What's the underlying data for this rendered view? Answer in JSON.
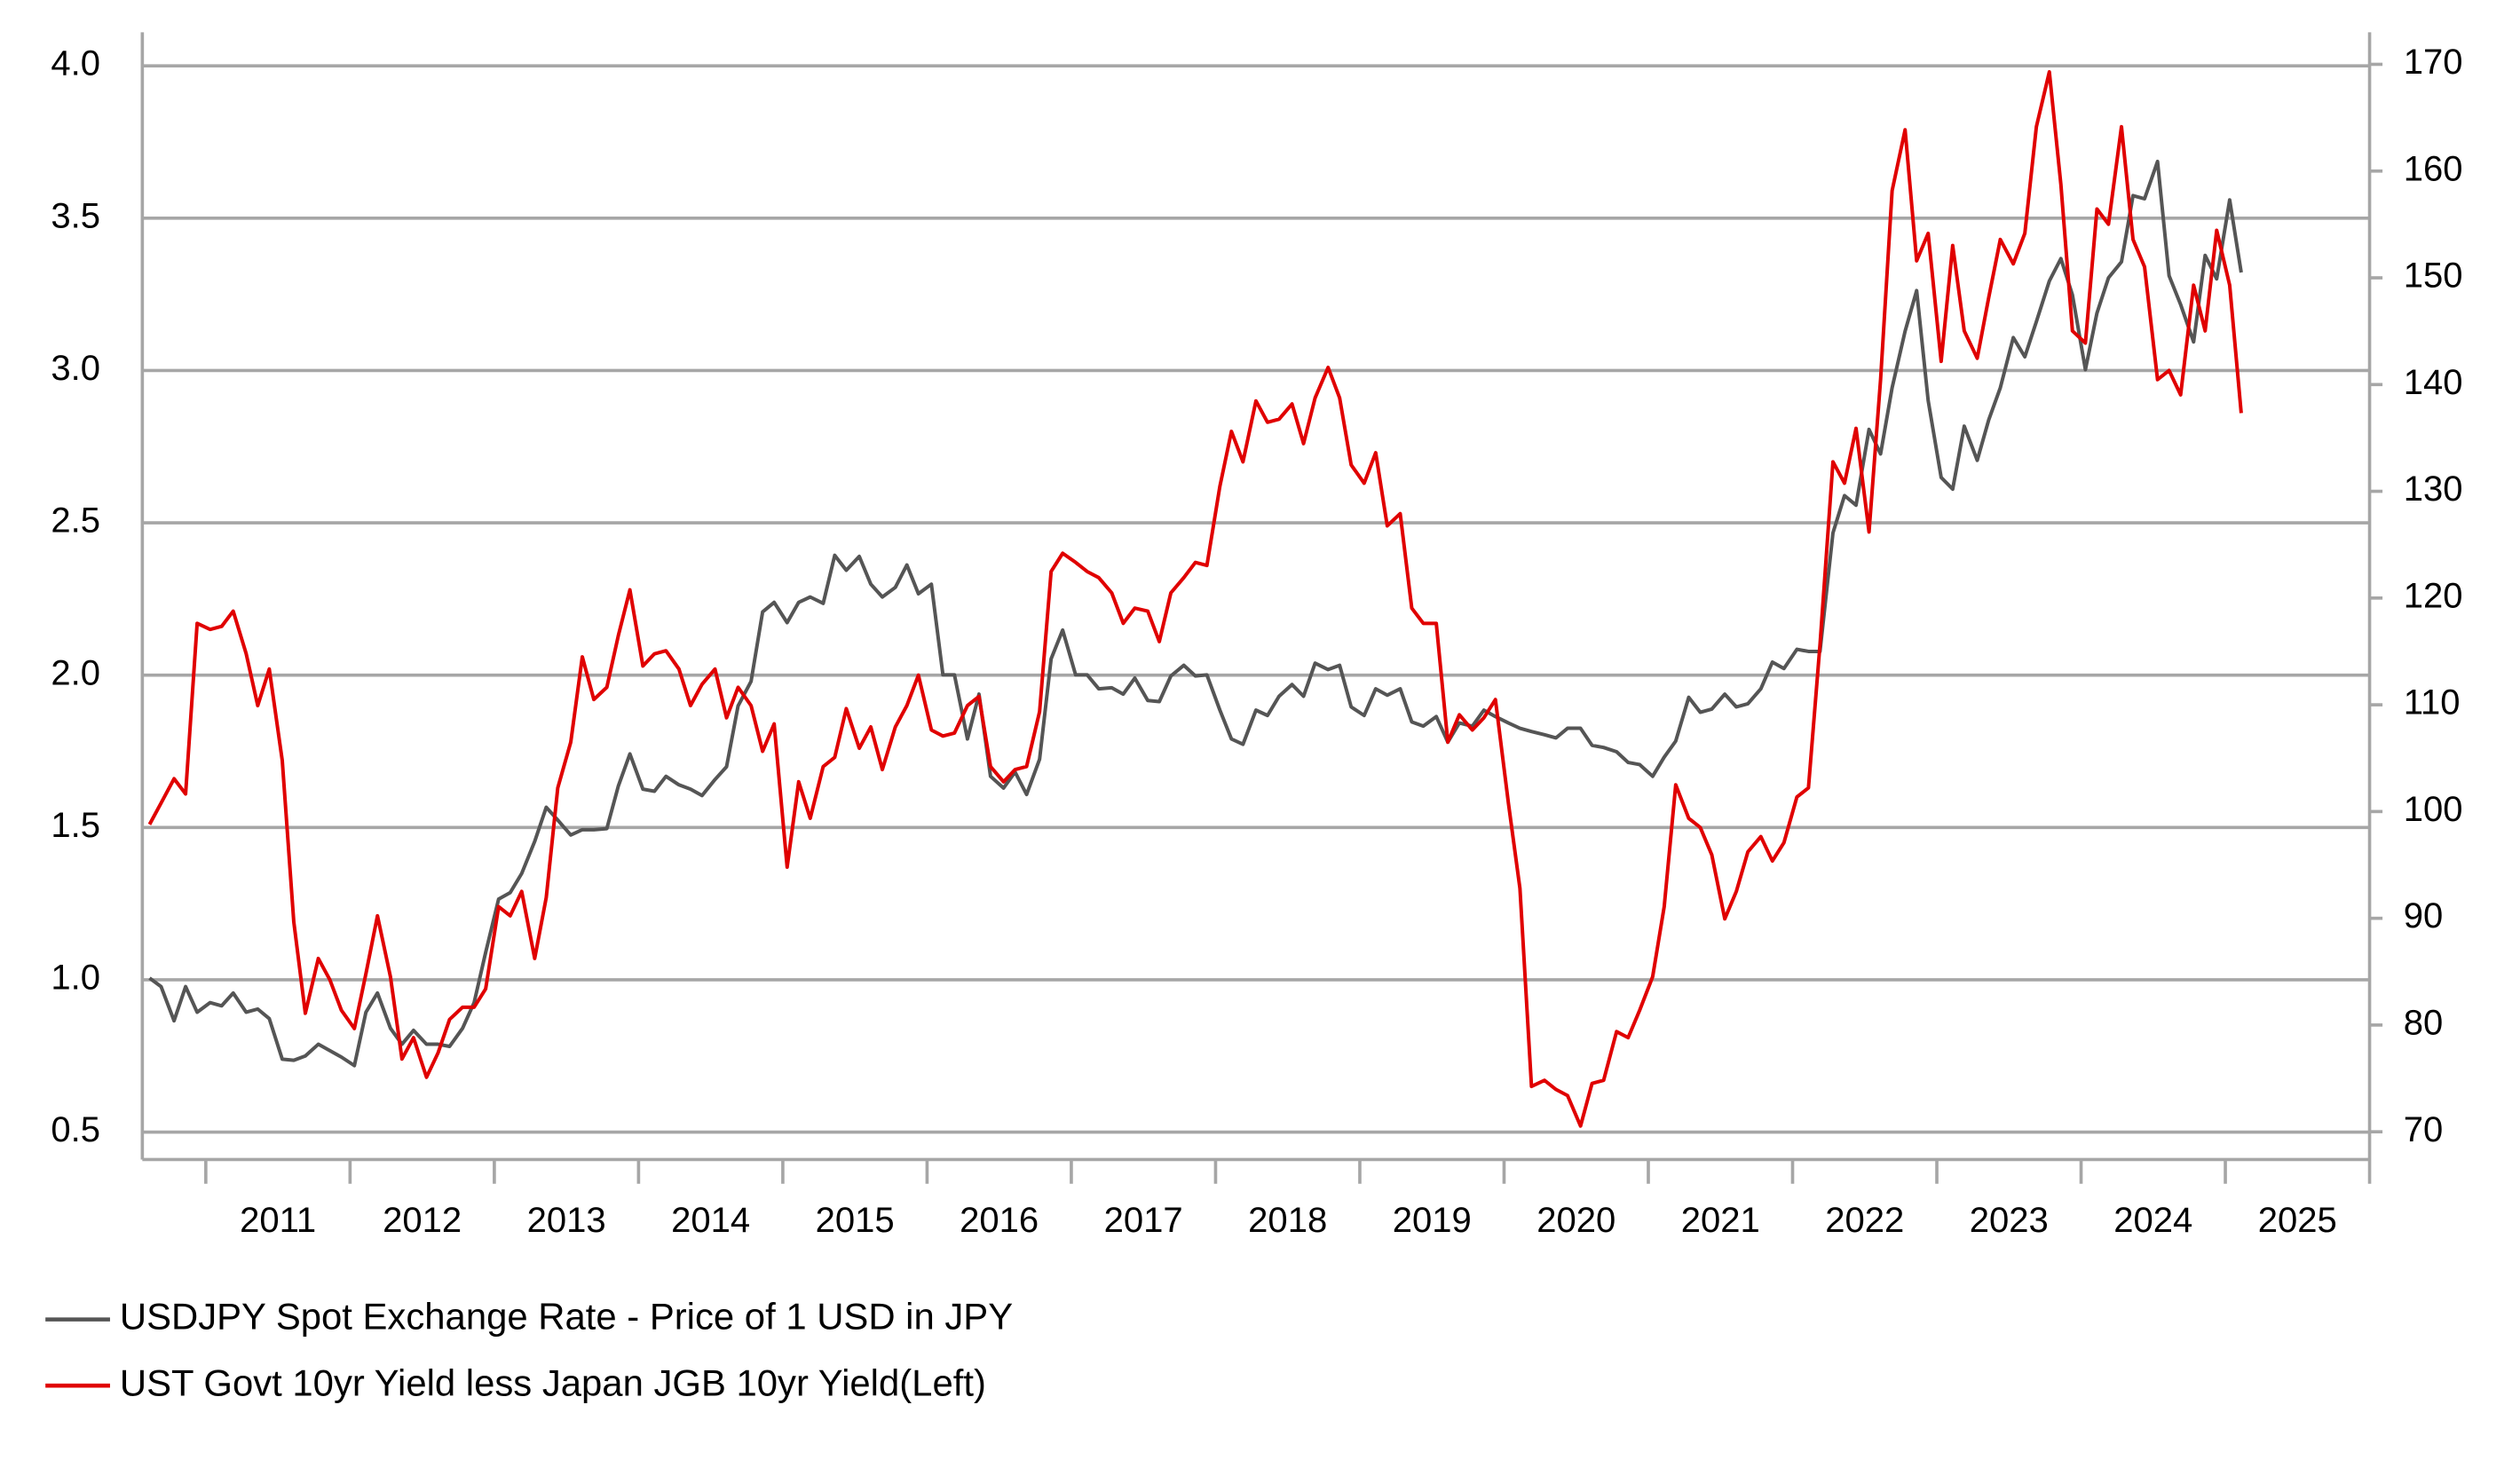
{
  "chart_data": {
    "type": "line",
    "xlim": [
      2010.56,
      2026.0
    ],
    "xticks": [
      2011,
      2012,
      2013,
      2014,
      2015,
      2016,
      2017,
      2018,
      2019,
      2020,
      2021,
      2022,
      2023,
      2024,
      2025,
      2026
    ],
    "xtick_labels": [
      "2011",
      "2012",
      "2013",
      "2014",
      "2015",
      "2016",
      "2017",
      "2018",
      "2019",
      "2020",
      "2021",
      "2022",
      "2023",
      "2024",
      "2025"
    ],
    "ylim": [
      0.41,
      4.11
    ],
    "yticks": [
      0.5,
      {
        "value": 1,
        "label": "1.0"
      },
      1.5,
      {
        "value": 2,
        "label": "2.0"
      },
      2.5,
      {
        "value": 3,
        "label": "3.0"
      },
      3.5,
      {
        "value": 4,
        "label": "4.0"
      }
    ],
    "y2lim": [
      67.4,
      173.0
    ],
    "y2ticks": [
      70,
      80,
      90,
      100,
      110,
      120,
      130,
      140,
      150,
      160,
      170
    ],
    "grid": true,
    "legend": "bottom-left",
    "x": [
      2010.61,
      2010.69,
      2010.78,
      2010.86,
      2010.94,
      2011.03,
      2011.11,
      2011.19,
      2011.28,
      2011.36,
      2011.44,
      2011.53,
      2011.61,
      2011.69,
      2011.78,
      2011.86,
      2011.94,
      2012.03,
      2012.11,
      2012.19,
      2012.28,
      2012.36,
      2012.44,
      2012.53,
      2012.61,
      2012.69,
      2012.78,
      2012.86,
      2012.94,
      2013.03,
      2013.11,
      2013.19,
      2013.28,
      2013.36,
      2013.44,
      2013.53,
      2013.61,
      2013.69,
      2013.78,
      2013.86,
      2013.94,
      2014.03,
      2014.11,
      2014.19,
      2014.28,
      2014.36,
      2014.44,
      2014.53,
      2014.61,
      2014.69,
      2014.78,
      2014.86,
      2014.94,
      2015.03,
      2015.11,
      2015.19,
      2015.28,
      2015.36,
      2015.44,
      2015.53,
      2015.61,
      2015.69,
      2015.78,
      2015.86,
      2015.94,
      2016.03,
      2016.11,
      2016.19,
      2016.28,
      2016.36,
      2016.44,
      2016.53,
      2016.61,
      2016.69,
      2016.78,
      2016.86,
      2016.94,
      2017.03,
      2017.11,
      2017.19,
      2017.28,
      2017.36,
      2017.44,
      2017.53,
      2017.61,
      2017.69,
      2017.78,
      2017.86,
      2017.94,
      2018.03,
      2018.11,
      2018.19,
      2018.28,
      2018.36,
      2018.44,
      2018.53,
      2018.61,
      2018.69,
      2018.78,
      2018.86,
      2018.94,
      2019.03,
      2019.11,
      2019.19,
      2019.28,
      2019.36,
      2019.44,
      2019.53,
      2019.61,
      2019.69,
      2019.78,
      2019.86,
      2019.94,
      2020.03,
      2020.11,
      2020.19,
      2020.28,
      2020.36,
      2020.44,
      2020.53,
      2020.61,
      2020.69,
      2020.78,
      2020.86,
      2020.94,
      2021.03,
      2021.11,
      2021.19,
      2021.28,
      2021.36,
      2021.44,
      2021.53,
      2021.61,
      2021.69,
      2021.78,
      2021.86,
      2021.94,
      2022.03,
      2022.11,
      2022.19,
      2022.28,
      2022.36,
      2022.44,
      2022.53,
      2022.61,
      2022.69,
      2022.78,
      2022.86,
      2022.94,
      2023.03,
      2023.11,
      2023.19,
      2023.28,
      2023.36,
      2023.44,
      2023.53,
      2023.61,
      2023.69,
      2023.78,
      2023.86,
      2023.94,
      2024.03,
      2024.11,
      2024.19,
      2024.28,
      2024.36,
      2024.44,
      2024.53,
      2024.61,
      2024.69,
      2024.78,
      2024.86,
      2024.94,
      2025.03,
      2025.11
    ],
    "series": [
      {
        "name": "USDJPY Spot Exchange Rate - Price of 1 USD in JPY",
        "color": "#555555",
        "axis": "y2",
        "values": [
          84.4,
          83.6,
          80.4,
          83.6,
          81.2,
          82.1,
          81.8,
          83.0,
          81.2,
          81.5,
          80.6,
          76.8,
          76.7,
          77.1,
          78.2,
          77.6,
          77.0,
          76.2,
          81.2,
          83.0,
          79.7,
          78.2,
          79.5,
          78.2,
          78.2,
          78.0,
          79.7,
          82.1,
          86.8,
          91.8,
          92.4,
          94.2,
          97.2,
          100.4,
          99.2,
          97.8,
          98.3,
          98.3,
          98.4,
          102.4,
          105.4,
          102.1,
          101.9,
          103.3,
          102.5,
          102.1,
          101.5,
          103.0,
          104.2,
          109.9,
          112.2,
          118.7,
          119.6,
          117.7,
          119.6,
          120.1,
          119.5,
          124.0,
          122.6,
          123.9,
          121.3,
          120.1,
          121.0,
          123.1,
          120.4,
          121.3,
          112.8,
          112.8,
          106.8,
          111.0,
          103.3,
          102.2,
          103.7,
          101.6,
          104.9,
          114.3,
          117.0,
          112.8,
          112.8,
          111.5,
          111.6,
          111.0,
          112.5,
          110.4,
          110.3,
          112.7,
          113.7,
          112.7,
          112.8,
          109.5,
          106.8,
          106.3,
          109.5,
          109.0,
          110.8,
          111.9,
          110.8,
          113.9,
          113.3,
          113.7,
          109.8,
          109.0,
          111.5,
          110.9,
          111.5,
          108.4,
          108.0,
          108.9,
          106.5,
          108.3,
          108.0,
          109.5,
          108.9,
          108.3,
          107.8,
          107.5,
          107.2,
          106.9,
          107.8,
          107.8,
          106.2,
          106.0,
          105.6,
          104.6,
          104.4,
          103.3,
          105.1,
          106.6,
          110.7,
          109.3,
          109.6,
          111.0,
          109.8,
          110.1,
          111.5,
          114.0,
          113.4,
          115.2,
          115.0,
          115.0,
          126.1,
          129.6,
          128.7,
          135.8,
          133.5,
          139.7,
          145.0,
          148.8,
          138.5,
          131.3,
          130.2,
          136.1,
          132.9,
          136.7,
          139.7,
          144.4,
          142.6,
          145.9,
          149.7,
          151.8,
          148.4,
          141.4,
          146.7,
          150.0,
          151.5,
          157.7,
          157.4,
          160.9,
          150.2,
          147.5,
          144.0,
          152.1,
          149.9,
          157.3,
          150.5
        ]
      },
      {
        "name": "UST Govt 10yr Yield less Japan JGB 10yr Yield(Left)",
        "color": "#e00000",
        "axis": "y",
        "values": [
          1.51,
          1.58,
          1.66,
          1.61,
          2.17,
          2.15,
          2.16,
          2.21,
          2.07,
          1.9,
          2.02,
          1.72,
          1.19,
          0.89,
          1.07,
          1.0,
          0.9,
          0.84,
          1.02,
          1.21,
          1.01,
          0.74,
          0.81,
          0.68,
          0.76,
          0.87,
          0.91,
          0.91,
          0.97,
          1.24,
          1.21,
          1.29,
          1.07,
          1.27,
          1.63,
          1.78,
          2.06,
          1.92,
          1.96,
          2.13,
          2.28,
          2.03,
          2.07,
          2.08,
          2.02,
          1.9,
          1.97,
          2.02,
          1.86,
          1.96,
          1.9,
          1.75,
          1.84,
          1.37,
          1.65,
          1.53,
          1.7,
          1.73,
          1.89,
          1.76,
          1.83,
          1.69,
          1.83,
          1.9,
          2.0,
          1.82,
          1.8,
          1.81,
          1.9,
          1.93,
          1.7,
          1.65,
          1.69,
          1.7,
          1.88,
          2.34,
          2.4,
          2.37,
          2.34,
          2.32,
          2.27,
          2.17,
          2.22,
          2.21,
          2.11,
          2.27,
          2.32,
          2.37,
          2.36,
          2.62,
          2.8,
          2.7,
          2.9,
          2.83,
          2.84,
          2.89,
          2.76,
          2.91,
          3.01,
          2.91,
          2.69,
          2.63,
          2.73,
          2.49,
          2.53,
          2.22,
          2.17,
          2.17,
          1.78,
          1.87,
          1.82,
          1.86,
          1.92,
          1.58,
          1.3,
          0.65,
          0.67,
          0.64,
          0.62,
          0.52,
          0.66,
          0.67,
          0.83,
          0.81,
          0.9,
          1.01,
          1.24,
          1.64,
          1.53,
          1.5,
          1.41,
          1.2,
          1.29,
          1.42,
          1.47,
          1.39,
          1.45,
          1.6,
          1.63,
          2.1,
          2.7,
          2.63,
          2.81,
          2.47,
          2.97,
          3.59,
          3.79,
          3.36,
          3.45,
          3.03,
          3.41,
          3.13,
          3.04,
          3.24,
          3.43,
          3.35,
          3.45,
          3.8,
          3.98,
          3.61,
          3.13,
          3.09,
          3.53,
          3.48,
          3.8,
          3.43,
          3.34,
          2.97,
          3.0,
          2.92,
          3.28,
          3.13,
          3.46,
          3.28,
          2.86
        ]
      }
    ]
  }
}
